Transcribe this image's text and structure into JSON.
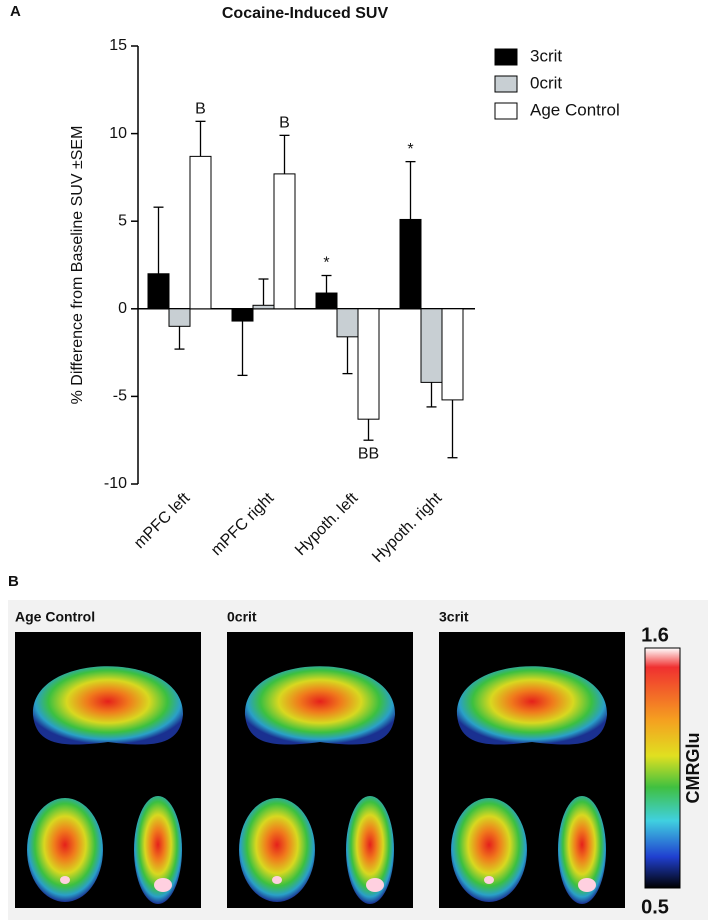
{
  "chart_data": {
    "type": "bar",
    "panel_label": "A",
    "title": "Cocaine-Induced SUV",
    "y_label": "% Difference from  Baseline SUV ±SEM",
    "categories": [
      "mPFC left",
      "mPFC right",
      "Hypoth. left",
      "Hypoth. right"
    ],
    "series": [
      {
        "name": "3crit",
        "color": "#000000",
        "values": [
          2.0,
          -0.7,
          0.9,
          5.1
        ],
        "errors": [
          3.8,
          3.1,
          1.0,
          3.3
        ],
        "annotations": [
          null,
          null,
          "*",
          "*"
        ]
      },
      {
        "name": "0crit",
        "color": "#c8cfd3",
        "values": [
          -1.0,
          0.2,
          -1.6,
          -4.2
        ],
        "errors": [
          1.3,
          1.5,
          2.1,
          1.4
        ],
        "annotations": [
          null,
          null,
          null,
          null
        ]
      },
      {
        "name": "Age Control",
        "color": "#ffffff",
        "values": [
          8.7,
          7.7,
          -6.3,
          -5.2
        ],
        "errors": [
          2.0,
          2.2,
          1.2,
          3.3
        ],
        "annotations": [
          "B",
          "B",
          "BB",
          null
        ]
      }
    ],
    "ylim": [
      -10,
      15
    ],
    "yticks": [
      -10,
      -5,
      0,
      5,
      10,
      15
    ],
    "legend": "upper right",
    "grid": false
  },
  "panel_b": {
    "panel_label": "B",
    "images": [
      "Age Control",
      "0crit",
      "3crit"
    ],
    "colorbar": {
      "label": "CMRGlu",
      "max": "1.6",
      "min": "0.5"
    }
  }
}
